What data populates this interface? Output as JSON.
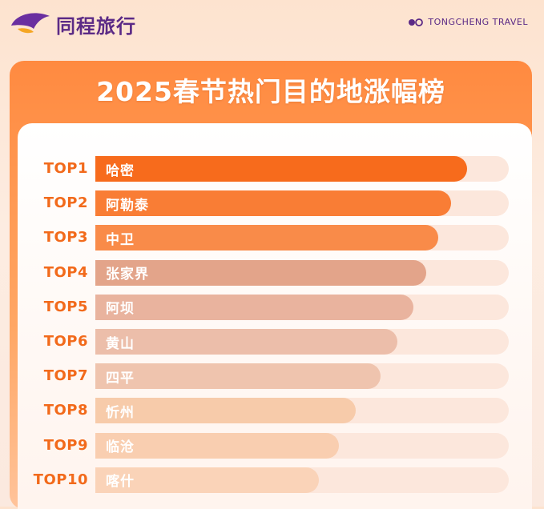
{
  "brand": {
    "name": "同程旅行",
    "english": "TONGCHENG TRAVEL"
  },
  "colors": {
    "brand_purple": "#5b2a86",
    "rank_orange": "#f26a1b",
    "track": "#fce7dc",
    "bar_colors": [
      "#f76b1c",
      "#f97d35",
      "#f98b49",
      "#e3a48a",
      "#e9b39e",
      "#ecbeaa",
      "#efc4ae",
      "#f7cbaa",
      "#f9ceb0",
      "#fad3b8"
    ]
  },
  "chart_data": {
    "type": "bar",
    "orientation": "horizontal",
    "title": "2025春节热门目的地涨幅榜",
    "ranks": [
      "TOP1",
      "TOP2",
      "TOP3",
      "TOP4",
      "TOP5",
      "TOP6",
      "TOP7",
      "TOP8",
      "TOP9",
      "TOP10"
    ],
    "categories": [
      "哈密",
      "阿勒泰",
      "中卫",
      "张家界",
      "阿坝",
      "黄山",
      "四平",
      "忻州",
      "临沧",
      "喀什"
    ],
    "values": [
      90,
      86,
      83,
      80,
      77,
      73,
      69,
      63,
      59,
      54
    ],
    "xlim": [
      0,
      100
    ],
    "grid": false,
    "legend": "none"
  }
}
